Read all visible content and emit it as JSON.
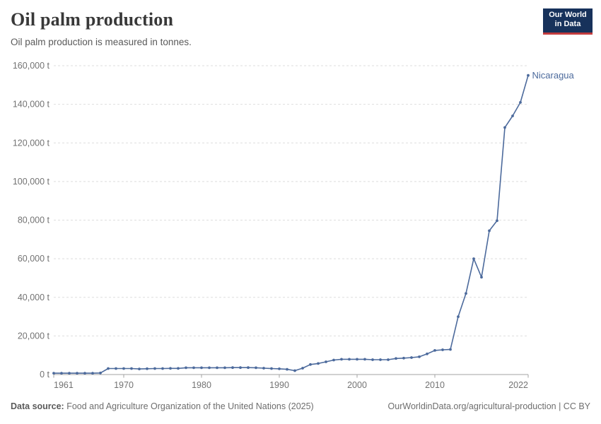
{
  "header": {
    "title": "Oil palm production",
    "subtitle": "Oil palm production is measured in tonnes."
  },
  "logo": {
    "line1": "Our World",
    "line2": "in Data",
    "bg_color": "#17325b",
    "accent_color": "#c23b3e"
  },
  "footer": {
    "source_label": "Data source:",
    "source_text": " Food and Agriculture Organization of the United Nations (2025)",
    "right_text": "OurWorldinData.org/agricultural-production | CC BY"
  },
  "colors": {
    "line": "#4C6A9C",
    "grid": "#dedede",
    "axis": "#a3a3a3",
    "tick_text": "#737373"
  },
  "chart_data": {
    "type": "line",
    "title": "Oil palm production",
    "subtitle": "Oil palm production is measured in tonnes.",
    "unit": "t",
    "grid": "dashed-horizontal",
    "legend": "end-of-line-label",
    "xlim": [
      1961,
      2022
    ],
    "ylim": [
      0,
      160000
    ],
    "x_ticks": [
      1961,
      1970,
      1980,
      1990,
      2000,
      2010,
      2022
    ],
    "y_ticks": [
      {
        "value": 0,
        "label": "0 t"
      },
      {
        "value": 20000,
        "label": "20,000 t"
      },
      {
        "value": 40000,
        "label": "40,000 t"
      },
      {
        "value": 60000,
        "label": "60,000 t"
      },
      {
        "value": 80000,
        "label": "80,000 t"
      },
      {
        "value": 100000,
        "label": "100,000 t"
      },
      {
        "value": 120000,
        "label": "120,000 t"
      },
      {
        "value": 140000,
        "label": "140,000 t"
      },
      {
        "value": 160000,
        "label": "160,000 t"
      }
    ],
    "x": [
      1961,
      1962,
      1963,
      1964,
      1965,
      1966,
      1967,
      1968,
      1969,
      1970,
      1971,
      1972,
      1973,
      1974,
      1975,
      1976,
      1977,
      1978,
      1979,
      1980,
      1981,
      1982,
      1983,
      1984,
      1985,
      1986,
      1987,
      1988,
      1989,
      1990,
      1991,
      1992,
      1993,
      1994,
      1995,
      1996,
      1997,
      1998,
      1999,
      2000,
      2001,
      2002,
      2003,
      2004,
      2005,
      2006,
      2007,
      2008,
      2009,
      2010,
      2011,
      2012,
      2013,
      2014,
      2015,
      2016,
      2017,
      2018,
      2019,
      2020,
      2021,
      2022
    ],
    "series": [
      {
        "name": "Nicaragua",
        "values": [
          700,
          700,
          700,
          700,
          700,
          700,
          800,
          3100,
          3100,
          3100,
          3100,
          2900,
          3000,
          3100,
          3100,
          3200,
          3200,
          3500,
          3500,
          3500,
          3500,
          3500,
          3500,
          3600,
          3600,
          3600,
          3500,
          3300,
          3100,
          2950,
          2700,
          2000,
          3300,
          5200,
          5700,
          6600,
          7500,
          7900,
          7900,
          7900,
          7900,
          7700,
          7700,
          7700,
          8300,
          8500,
          8800,
          9200,
          10700,
          12500,
          12800,
          13000,
          30000,
          42000,
          60000,
          50400,
          74500,
          79700,
          128000,
          134000,
          141000,
          155000
        ]
      }
    ]
  }
}
